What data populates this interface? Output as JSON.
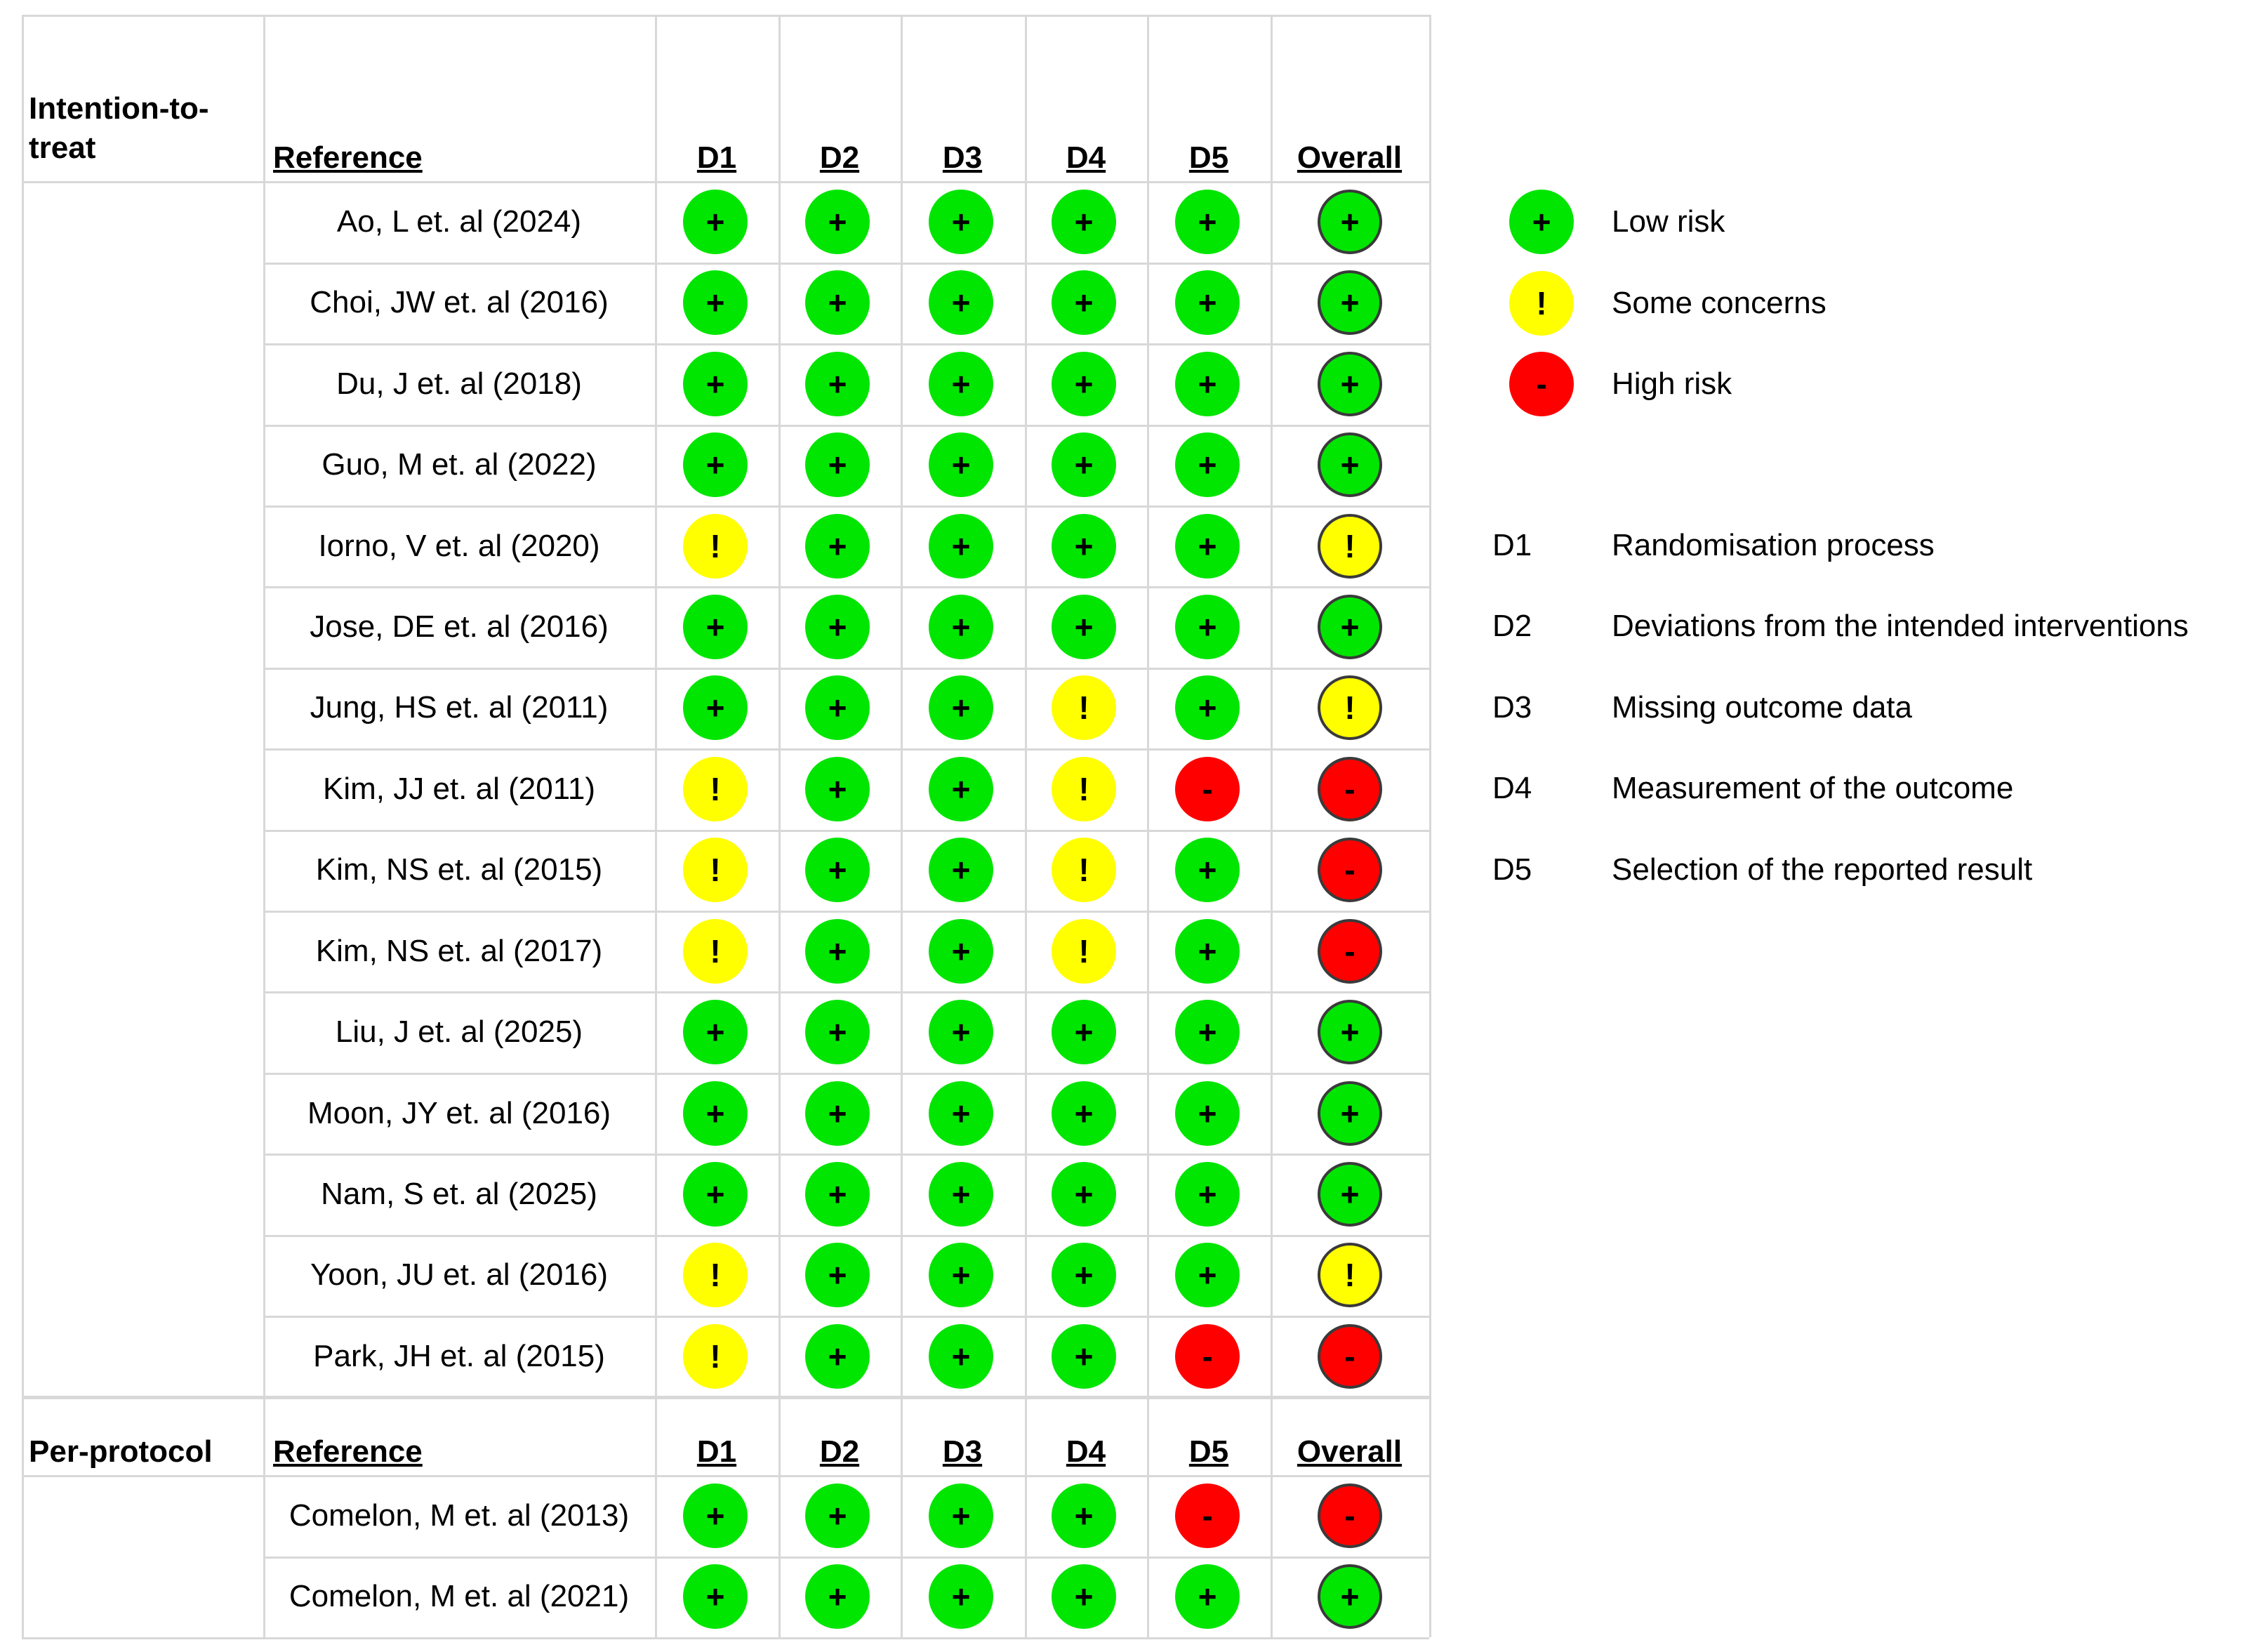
{
  "colors": {
    "low": "#00e600",
    "some": "#ffff00",
    "high": "#ff0000",
    "grid": "#d8d8d8"
  },
  "symbols": {
    "low": "+",
    "some": "!",
    "high": "-"
  },
  "table": {
    "columns": [
      "D1",
      "D2",
      "D3",
      "D4",
      "D5",
      "Overall"
    ],
    "reference_header": "Reference",
    "sections": [
      {
        "title": "Intention-to-treat",
        "title_lines": [
          "Intention-to-",
          "treat"
        ],
        "rows": [
          {
            "reference": "Ao, L et. al (2024)",
            "ratings": [
              "low",
              "low",
              "low",
              "low",
              "low",
              "low"
            ]
          },
          {
            "reference": "Choi, JW et. al (2016)",
            "ratings": [
              "low",
              "low",
              "low",
              "low",
              "low",
              "low"
            ]
          },
          {
            "reference": "Du, J et. al (2018)",
            "ratings": [
              "low",
              "low",
              "low",
              "low",
              "low",
              "low"
            ]
          },
          {
            "reference": "Guo, M et. al (2022)",
            "ratings": [
              "low",
              "low",
              "low",
              "low",
              "low",
              "low"
            ]
          },
          {
            "reference": "Iorno, V et. al (2020)",
            "ratings": [
              "some",
              "low",
              "low",
              "low",
              "low",
              "some"
            ]
          },
          {
            "reference": "Jose, DE et. al (2016)",
            "ratings": [
              "low",
              "low",
              "low",
              "low",
              "low",
              "low"
            ]
          },
          {
            "reference": "Jung, HS et. al (2011)",
            "ratings": [
              "low",
              "low",
              "low",
              "some",
              "low",
              "some"
            ]
          },
          {
            "reference": "Kim, JJ et. al (2011)",
            "ratings": [
              "some",
              "low",
              "low",
              "some",
              "high",
              "high"
            ]
          },
          {
            "reference": "Kim, NS et. al (2015)",
            "ratings": [
              "some",
              "low",
              "low",
              "some",
              "low",
              "high"
            ]
          },
          {
            "reference": "Kim, NS et. al (2017)",
            "ratings": [
              "some",
              "low",
              "low",
              "some",
              "low",
              "high"
            ]
          },
          {
            "reference": "Liu, J et. al (2025)",
            "ratings": [
              "low",
              "low",
              "low",
              "low",
              "low",
              "low"
            ]
          },
          {
            "reference": "Moon, JY et. al (2016)",
            "ratings": [
              "low",
              "low",
              "low",
              "low",
              "low",
              "low"
            ]
          },
          {
            "reference": "Nam, S et. al (2025)",
            "ratings": [
              "low",
              "low",
              "low",
              "low",
              "low",
              "low"
            ]
          },
          {
            "reference": "Yoon, JU et. al (2016)",
            "ratings": [
              "some",
              "low",
              "low",
              "low",
              "low",
              "some"
            ]
          },
          {
            "reference": "Park, JH et. al (2015)",
            "ratings": [
              "some",
              "low",
              "low",
              "low",
              "high",
              "high"
            ]
          }
        ]
      },
      {
        "title": "Per-protocol",
        "title_lines": [
          "Per-protocol"
        ],
        "rows": [
          {
            "reference": "Comelon, M et. al (2013)",
            "ratings": [
              "low",
              "low",
              "low",
              "low",
              "high",
              "high"
            ]
          },
          {
            "reference": "Comelon, M et. al (2021)",
            "ratings": [
              "low",
              "low",
              "low",
              "low",
              "low",
              "low"
            ]
          }
        ]
      }
    ]
  },
  "legend": {
    "risk": [
      {
        "key": "low",
        "label": "Low risk",
        "icon": "plus-circle"
      },
      {
        "key": "some",
        "label": "Some concerns",
        "icon": "exclamation-circle"
      },
      {
        "key": "high",
        "label": "High risk",
        "icon": "minus-circle"
      }
    ],
    "domains": [
      {
        "code": "D1",
        "label": "Randomisation process"
      },
      {
        "code": "D2",
        "label": "Deviations from the intended interventions"
      },
      {
        "code": "D3",
        "label": "Missing outcome data"
      },
      {
        "code": "D4",
        "label": "Measurement of the outcome"
      },
      {
        "code": "D5",
        "label": "Selection of the reported result"
      }
    ]
  }
}
